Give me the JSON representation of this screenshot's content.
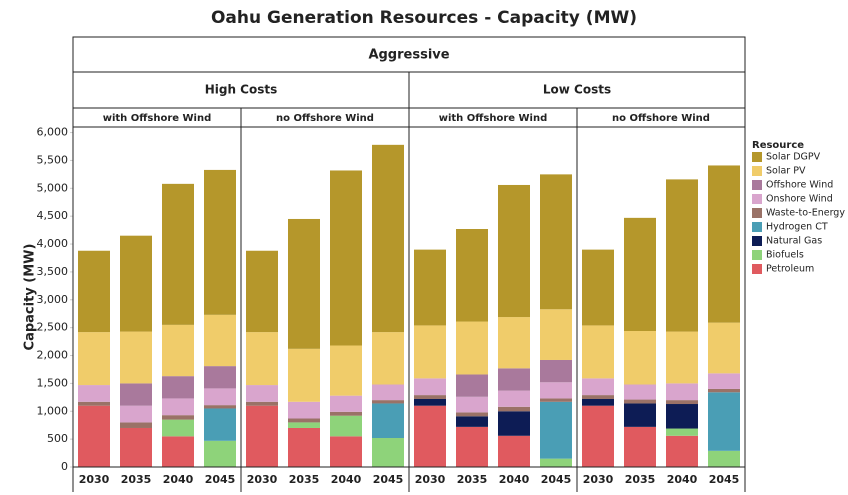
{
  "chart_data": {
    "type": "bar",
    "stacked": true,
    "title": "Oahu Generation Resources - Capacity (MW)",
    "scenario": "Aggressive",
    "y_label": "Capacity (MW)",
    "legend_title": "Resource",
    "ylim": [
      0,
      6100
    ],
    "yticks": [
      0,
      500,
      {
        "value": 1000,
        "label": "1,000"
      },
      {
        "value": 1500,
        "label": "1,500"
      },
      {
        "value": 2000,
        "label": "2,000"
      },
      {
        "value": 2500,
        "label": "2,500"
      },
      {
        "value": 3000,
        "label": "3,000"
      },
      {
        "value": 3500,
        "label": "3,500"
      },
      {
        "value": 4000,
        "label": "4,000"
      },
      {
        "value": 4500,
        "label": "4,500"
      },
      {
        "value": 5000,
        "label": "5,000"
      },
      {
        "value": 5500,
        "label": "5,500"
      },
      {
        "value": 6000,
        "label": "6,000"
      }
    ],
    "series": [
      {
        "name": "Solar DGPV",
        "color": "#b5972b"
      },
      {
        "name": "Solar PV",
        "color": "#f0cc6a"
      },
      {
        "name": "Offshore Wind",
        "color": "#a9799c"
      },
      {
        "name": "Onshore Wind",
        "color": "#d9a5cd"
      },
      {
        "name": "Waste-to-Energy",
        "color": "#9a7267"
      },
      {
        "name": "Hydrogen CT",
        "color": "#4a9eb5"
      },
      {
        "name": "Natural Gas",
        "color": "#0d1c55"
      },
      {
        "name": "Biofuels",
        "color": "#8ed37a"
      },
      {
        "name": "Petroleum",
        "color": "#e05a5f"
      }
    ],
    "groups": [
      {
        "label": "High Costs",
        "panels": [
          {
            "label": "with Offshore Wind",
            "categories": [
              "2030",
              "2035",
              "2040",
              "2045"
            ],
            "values": [
              [
                1460,
                1720,
                2530,
                2600
              ],
              [
                950,
                930,
                920,
                920
              ],
              [
                0,
                400,
                400,
                400
              ],
              [
                300,
                300,
                300,
                300
              ],
              [
                70,
                100,
                80,
                60
              ],
              [
                0,
                0,
                0,
                580
              ],
              [
                0,
                0,
                0,
                0
              ],
              [
                0,
                0,
                300,
                470
              ],
              [
                1100,
                700,
                550,
                0
              ]
            ]
          },
          {
            "label": "no Offshore Wind",
            "categories": [
              "2030",
              "2035",
              "2040",
              "2045"
            ],
            "values": [
              [
                1460,
                2330,
                3140,
                3360
              ],
              [
                950,
                950,
                900,
                940
              ],
              [
                0,
                0,
                0,
                0
              ],
              [
                300,
                300,
                290,
                280
              ],
              [
                70,
                70,
                70,
                60
              ],
              [
                0,
                0,
                0,
                620
              ],
              [
                0,
                0,
                0,
                0
              ],
              [
                0,
                100,
                370,
                520
              ],
              [
                1100,
                700,
                550,
                0
              ]
            ]
          }
        ]
      },
      {
        "label": "Low Costs",
        "panels": [
          {
            "label": "with Offshore Wind",
            "categories": [
              "2030",
              "2035",
              "2040",
              "2045"
            ],
            "values": [
              [
                1360,
                1660,
                2370,
                2420
              ],
              [
                950,
                950,
                920,
                910
              ],
              [
                0,
                400,
                400,
                400
              ],
              [
                300,
                280,
                290,
                290
              ],
              [
                70,
                70,
                80,
                60
              ],
              [
                0,
                0,
                0,
                1020
              ],
              [
                120,
                190,
                440,
                0
              ],
              [
                0,
                0,
                0,
                150
              ],
              [
                1100,
                720,
                560,
                0
              ]
            ]
          },
          {
            "label": "no Offshore Wind",
            "categories": [
              "2030",
              "2035",
              "2040",
              "2045"
            ],
            "values": [
              [
                1360,
                2030,
                2730,
                2820
              ],
              [
                950,
                960,
                930,
                910
              ],
              [
                0,
                0,
                0,
                0
              ],
              [
                300,
                270,
                300,
                280
              ],
              [
                70,
                70,
                70,
                60
              ],
              [
                0,
                0,
                0,
                1050
              ],
              [
                120,
                420,
                440,
                0
              ],
              [
                0,
                0,
                130,
                290
              ],
              [
                1100,
                720,
                560,
                0
              ]
            ]
          }
        ]
      }
    ]
  }
}
